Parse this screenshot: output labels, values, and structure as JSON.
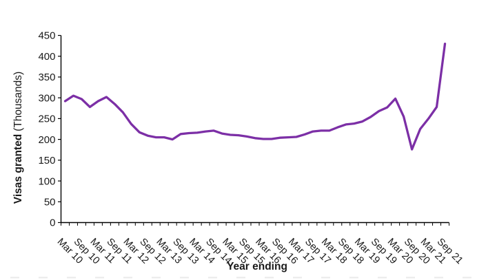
{
  "chart_data": {
    "type": "line",
    "title": "",
    "xlabel": "Year ending",
    "ylabel": "Visas granted",
    "ylabel_unit": "(Thousands)",
    "ylim": [
      0,
      450
    ],
    "yticks": [
      0,
      50,
      100,
      150,
      200,
      250,
      300,
      350,
      400,
      450
    ],
    "x_tick_labels": [
      "Mar 10",
      "Sep 10",
      "Mar 11",
      "Sep 11",
      "Mar 12",
      "Sep 12",
      "Mar 13",
      "Sep 13",
      "Mar 14",
      "Sep 14",
      "Mar 15",
      "Sep 15",
      "Mar 16",
      "Sep 16",
      "Mar 17",
      "Sep 17",
      "Mar 18",
      "Sep 18",
      "Mar 19",
      "Sep 19",
      "Mar 20",
      "Sep 20",
      "Mar 21",
      "Sep 21"
    ],
    "points_per_label": 2,
    "values_unit": "thousands",
    "values": [
      292,
      305,
      297,
      278,
      292,
      302,
      285,
      265,
      237,
      217,
      209,
      205,
      205,
      200,
      213,
      215,
      216,
      219,
      221,
      214,
      211,
      210,
      207,
      203,
      201,
      201,
      204,
      205,
      206,
      212,
      219,
      221,
      221,
      229,
      236,
      238,
      243,
      254,
      268,
      277,
      298,
      255,
      176,
      225,
      250,
      278,
      430
    ],
    "line_color": "#7C2FA6",
    "axis_color": "#000000",
    "text_color": "#1a1a1a",
    "grid": false,
    "legend": null
  }
}
